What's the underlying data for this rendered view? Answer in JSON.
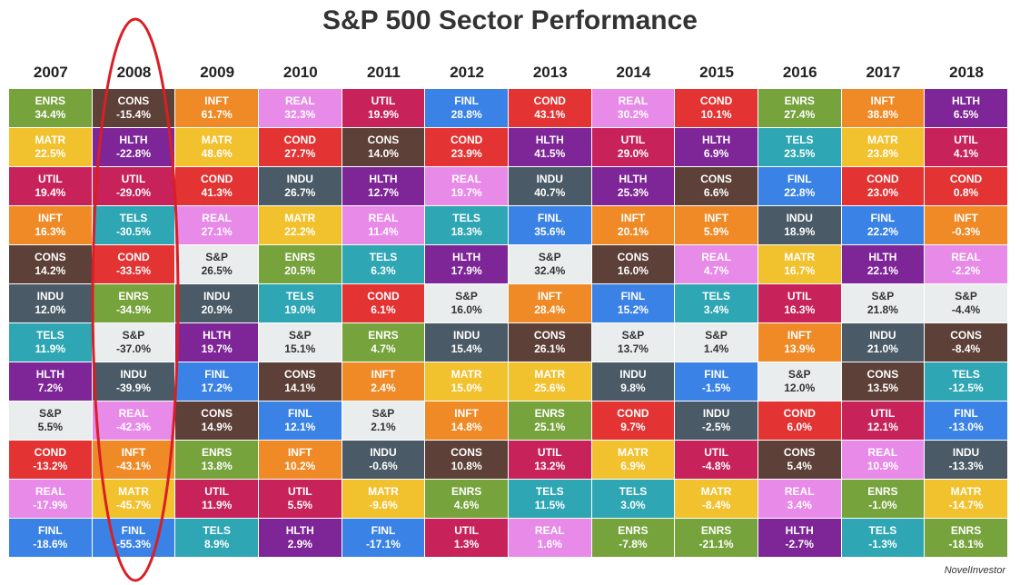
{
  "title": "S&P 500 Sector Performance",
  "credit": "NovelInvestor",
  "colors": {
    "ENRS": "#76a33c",
    "MATR": "#f2c12e",
    "UTIL": "#c7235a",
    "INFT": "#ef8a26",
    "CONS": "#5d4037",
    "INDU": "#4a5a66",
    "TELS": "#2ea6b3",
    "HLTH": "#7e2597",
    "S&P": "#eaedee",
    "COND": "#e33333",
    "REAL": "#e88ae8",
    "FINL": "#3a82e6",
    "highlight": "#d91f26"
  },
  "chart_data": {
    "type": "table",
    "title": "S&P 500 Sector Performance",
    "years": [
      "2007",
      "2008",
      "2009",
      "2010",
      "2011",
      "2012",
      "2013",
      "2014",
      "2015",
      "2016",
      "2017",
      "2018"
    ],
    "columns": [
      [
        [
          "ENRS",
          "34.4%"
        ],
        [
          "MATR",
          "22.5%"
        ],
        [
          "UTIL",
          "19.4%"
        ],
        [
          "INFT",
          "16.3%"
        ],
        [
          "CONS",
          "14.2%"
        ],
        [
          "INDU",
          "12.0%"
        ],
        [
          "TELS",
          "11.9%"
        ],
        [
          "HLTH",
          "7.2%"
        ],
        [
          "S&P",
          "5.5%"
        ],
        [
          "COND",
          "-13.2%"
        ],
        [
          "REAL",
          "-17.9%"
        ],
        [
          "FINL",
          "-18.6%"
        ]
      ],
      [
        [
          "CONS",
          "-15.4%"
        ],
        [
          "HLTH",
          "-22.8%"
        ],
        [
          "UTIL",
          "-29.0%"
        ],
        [
          "TELS",
          "-30.5%"
        ],
        [
          "COND",
          "-33.5%"
        ],
        [
          "ENRS",
          "-34.9%"
        ],
        [
          "S&P",
          "-37.0%"
        ],
        [
          "INDU",
          "-39.9%"
        ],
        [
          "REAL",
          "-42.3%"
        ],
        [
          "INFT",
          "-43.1%"
        ],
        [
          "MATR",
          "-45.7%"
        ],
        [
          "FINL",
          "-55.3%"
        ]
      ],
      [
        [
          "INFT",
          "61.7%"
        ],
        [
          "MATR",
          "48.6%"
        ],
        [
          "COND",
          "41.3%"
        ],
        [
          "REAL",
          "27.1%"
        ],
        [
          "S&P",
          "26.5%"
        ],
        [
          "INDU",
          "20.9%"
        ],
        [
          "HLTH",
          "19.7%"
        ],
        [
          "FINL",
          "17.2%"
        ],
        [
          "CONS",
          "14.9%"
        ],
        [
          "ENRS",
          "13.8%"
        ],
        [
          "UTIL",
          "11.9%"
        ],
        [
          "TELS",
          "8.9%"
        ]
      ],
      [
        [
          "REAL",
          "32.3%"
        ],
        [
          "COND",
          "27.7%"
        ],
        [
          "INDU",
          "26.7%"
        ],
        [
          "MATR",
          "22.2%"
        ],
        [
          "ENRS",
          "20.5%"
        ],
        [
          "TELS",
          "19.0%"
        ],
        [
          "S&P",
          "15.1%"
        ],
        [
          "CONS",
          "14.1%"
        ],
        [
          "FINL",
          "12.1%"
        ],
        [
          "INFT",
          "10.2%"
        ],
        [
          "UTIL",
          "5.5%"
        ],
        [
          "HLTH",
          "2.9%"
        ]
      ],
      [
        [
          "UTIL",
          "19.9%"
        ],
        [
          "CONS",
          "14.0%"
        ],
        [
          "HLTH",
          "12.7%"
        ],
        [
          "REAL",
          "11.4%"
        ],
        [
          "TELS",
          "6.3%"
        ],
        [
          "COND",
          "6.1%"
        ],
        [
          "ENRS",
          "4.7%"
        ],
        [
          "INFT",
          "2.4%"
        ],
        [
          "S&P",
          "2.1%"
        ],
        [
          "INDU",
          "-0.6%"
        ],
        [
          "MATR",
          "-9.6%"
        ],
        [
          "FINL",
          "-17.1%"
        ]
      ],
      [
        [
          "FINL",
          "28.8%"
        ],
        [
          "COND",
          "23.9%"
        ],
        [
          "REAL",
          "19.7%"
        ],
        [
          "TELS",
          "18.3%"
        ],
        [
          "HLTH",
          "17.9%"
        ],
        [
          "S&P",
          "16.0%"
        ],
        [
          "INDU",
          "15.4%"
        ],
        [
          "MATR",
          "15.0%"
        ],
        [
          "INFT",
          "14.8%"
        ],
        [
          "CONS",
          "10.8%"
        ],
        [
          "ENRS",
          "4.6%"
        ],
        [
          "UTIL",
          "1.3%"
        ]
      ],
      [
        [
          "COND",
          "43.1%"
        ],
        [
          "HLTH",
          "41.5%"
        ],
        [
          "INDU",
          "40.7%"
        ],
        [
          "FINL",
          "35.6%"
        ],
        [
          "S&P",
          "32.4%"
        ],
        [
          "INFT",
          "28.4%"
        ],
        [
          "CONS",
          "26.1%"
        ],
        [
          "MATR",
          "25.6%"
        ],
        [
          "ENRS",
          "25.1%"
        ],
        [
          "UTIL",
          "13.2%"
        ],
        [
          "TELS",
          "11.5%"
        ],
        [
          "REAL",
          "1.6%"
        ]
      ],
      [
        [
          "REAL",
          "30.2%"
        ],
        [
          "UTIL",
          "29.0%"
        ],
        [
          "HLTH",
          "25.3%"
        ],
        [
          "INFT",
          "20.1%"
        ],
        [
          "CONS",
          "16.0%"
        ],
        [
          "FINL",
          "15.2%"
        ],
        [
          "S&P",
          "13.7%"
        ],
        [
          "INDU",
          "9.8%"
        ],
        [
          "COND",
          "9.7%"
        ],
        [
          "MATR",
          "6.9%"
        ],
        [
          "TELS",
          "3.0%"
        ],
        [
          "ENRS",
          "-7.8%"
        ]
      ],
      [
        [
          "COND",
          "10.1%"
        ],
        [
          "HLTH",
          "6.9%"
        ],
        [
          "CONS",
          "6.6%"
        ],
        [
          "INFT",
          "5.9%"
        ],
        [
          "REAL",
          "4.7%"
        ],
        [
          "TELS",
          "3.4%"
        ],
        [
          "S&P",
          "1.4%"
        ],
        [
          "FINL",
          "-1.5%"
        ],
        [
          "INDU",
          "-2.5%"
        ],
        [
          "UTIL",
          "-4.8%"
        ],
        [
          "MATR",
          "-8.4%"
        ],
        [
          "ENRS",
          "-21.1%"
        ]
      ],
      [
        [
          "ENRS",
          "27.4%"
        ],
        [
          "TELS",
          "23.5%"
        ],
        [
          "FINL",
          "22.8%"
        ],
        [
          "INDU",
          "18.9%"
        ],
        [
          "MATR",
          "16.7%"
        ],
        [
          "UTIL",
          "16.3%"
        ],
        [
          "INFT",
          "13.9%"
        ],
        [
          "S&P",
          "12.0%"
        ],
        [
          "COND",
          "6.0%"
        ],
        [
          "CONS",
          "5.4%"
        ],
        [
          "REAL",
          "3.4%"
        ],
        [
          "HLTH",
          "-2.7%"
        ]
      ],
      [
        [
          "INFT",
          "38.8%"
        ],
        [
          "MATR",
          "23.8%"
        ],
        [
          "COND",
          "23.0%"
        ],
        [
          "FINL",
          "22.2%"
        ],
        [
          "HLTH",
          "22.1%"
        ],
        [
          "S&P",
          "21.8%"
        ],
        [
          "INDU",
          "21.0%"
        ],
        [
          "CONS",
          "13.5%"
        ],
        [
          "UTIL",
          "12.1%"
        ],
        [
          "REAL",
          "10.9%"
        ],
        [
          "ENRS",
          "-1.0%"
        ],
        [
          "TELS",
          "-1.3%"
        ]
      ],
      [
        [
          "HLTH",
          "6.5%"
        ],
        [
          "UTIL",
          "4.1%"
        ],
        [
          "COND",
          "0.8%"
        ],
        [
          "INFT",
          "-0.3%"
        ],
        [
          "REAL",
          "-2.2%"
        ],
        [
          "S&P",
          "-4.4%"
        ],
        [
          "CONS",
          "-8.4%"
        ],
        [
          "TELS",
          "-12.5%"
        ],
        [
          "FINL",
          "-13.0%"
        ],
        [
          "INDU",
          "-13.3%"
        ],
        [
          "MATR",
          "-14.7%"
        ],
        [
          "ENRS",
          "-18.1%"
        ]
      ]
    ],
    "annotation": "red ellipse highlighting 2008 column"
  }
}
